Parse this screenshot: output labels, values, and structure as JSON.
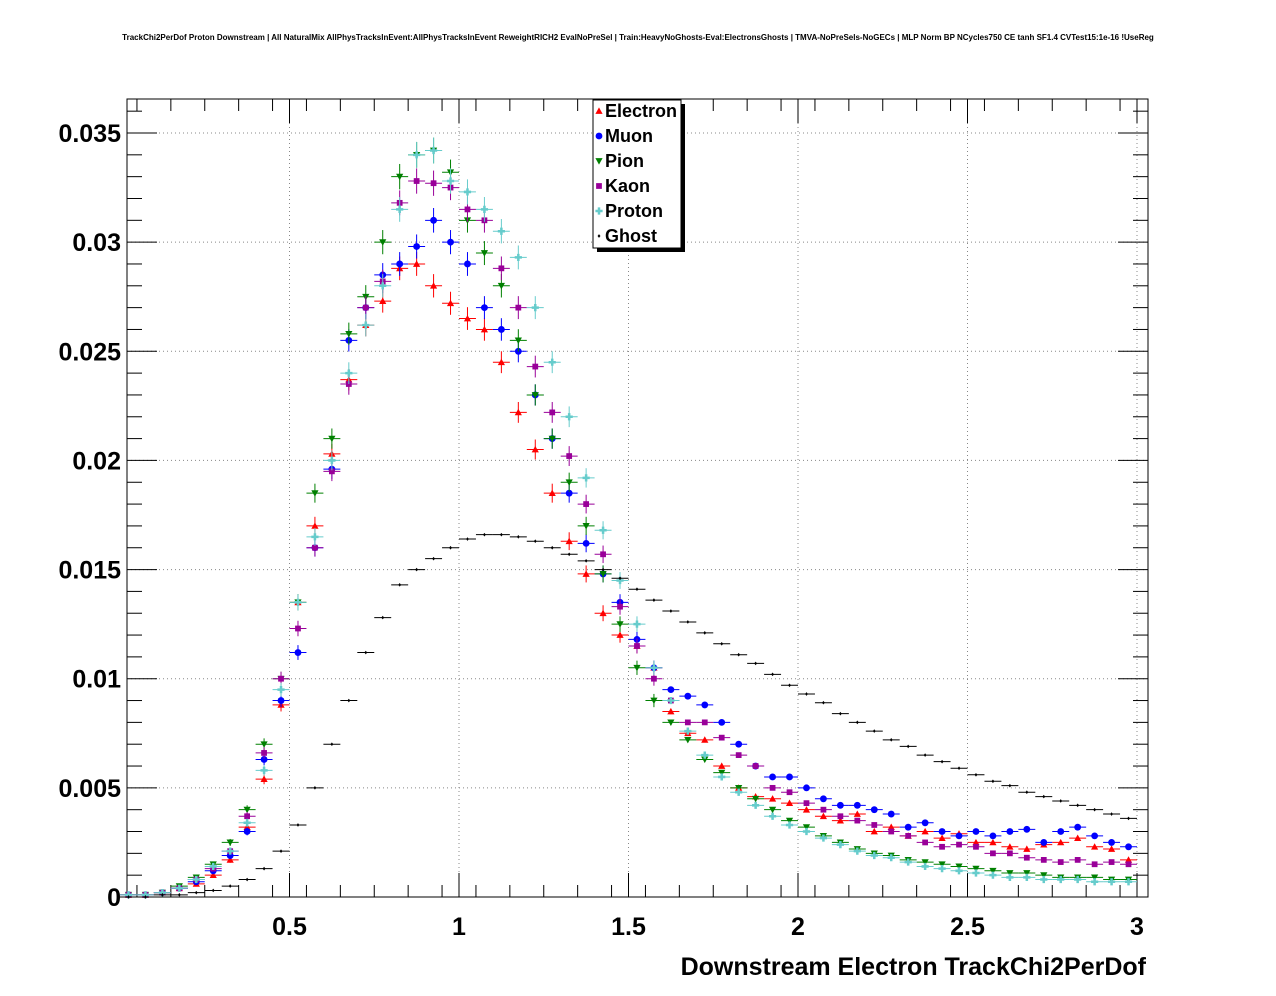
{
  "chart_data": {
    "type": "scatter",
    "title": "TrackChi2PerDof Proton Downstream | All NaturalMix AllPhysTracksInEvent:AllPhysTracksInEvent ReweightRICH2 EvalNoPreSel | Train:HeavyNoGhosts-Eval:ElectronsGhosts | TMVA-NoPreSels-NoGECs | MLP Norm BP NCycles750 CE tanh SF1.4 CVTest15:1e-16 !UseReg",
    "xlabel": "Downstream Electron TrackChi2PerDof",
    "ylabel": "",
    "xlim": [
      0.0,
      3.03
    ],
    "ylim": [
      0.0,
      0.0365
    ],
    "x_ticks": [
      0.5,
      1,
      1.5,
      2,
      2.5,
      3
    ],
    "x_tick_labels": [
      "0.5",
      "1",
      "1.5",
      "2",
      "2.5",
      "3"
    ],
    "y_ticks": [
      0,
      0.005,
      0.01,
      0.015,
      0.02,
      0.025,
      0.03,
      0.035
    ],
    "y_tick_labels": [
      "0",
      "0.005",
      "0.01",
      "0.015",
      "0.02",
      "0.025",
      "0.03",
      "0.035"
    ],
    "grid": true,
    "legend_position": "top-center",
    "x": [
      0.025,
      0.075,
      0.125,
      0.175,
      0.225,
      0.275,
      0.325,
      0.375,
      0.425,
      0.475,
      0.525,
      0.575,
      0.625,
      0.675,
      0.725,
      0.775,
      0.825,
      0.875,
      0.925,
      0.975,
      1.025,
      1.075,
      1.125,
      1.175,
      1.225,
      1.275,
      1.325,
      1.375,
      1.425,
      1.475,
      1.525,
      1.575,
      1.625,
      1.675,
      1.725,
      1.775,
      1.825,
      1.875,
      1.925,
      1.975,
      2.025,
      2.075,
      2.125,
      2.175,
      2.225,
      2.275,
      2.325,
      2.375,
      2.425,
      2.475,
      2.525,
      2.575,
      2.625,
      2.675,
      2.725,
      2.775,
      2.825,
      2.875,
      2.925,
      2.975
    ],
    "series": [
      {
        "name": "Electron",
        "color": "#ff0000",
        "marker": "triangle-up",
        "values": [
          0.0001,
          0.0001,
          0.0002,
          0.0004,
          0.0006,
          0.001,
          0.0017,
          0.0032,
          0.0054,
          0.0088,
          0.0135,
          0.017,
          0.0203,
          0.0237,
          0.0262,
          0.0273,
          0.0288,
          0.029,
          0.028,
          0.0272,
          0.0265,
          0.026,
          0.0245,
          0.0222,
          0.0205,
          0.0185,
          0.0163,
          0.0148,
          0.013,
          0.012,
          0.0115,
          0.0105,
          0.0085,
          0.0075,
          0.0072,
          0.006,
          0.005,
          0.0046,
          0.0045,
          0.0043,
          0.004,
          0.0037,
          0.0035,
          0.0038,
          0.003,
          0.0032,
          0.0028,
          0.003,
          0.0027,
          0.0029,
          0.0025,
          0.0025,
          0.0023,
          0.0022,
          0.0024,
          0.0025,
          0.0027,
          0.0023,
          0.0022,
          0.0017
        ]
      },
      {
        "name": "Muon",
        "color": "#0000ff",
        "marker": "circle",
        "values": [
          0.0001,
          0.0001,
          0.0002,
          0.0004,
          0.0007,
          0.0012,
          0.0019,
          0.003,
          0.0063,
          0.009,
          0.0112,
          0.016,
          0.0196,
          0.0255,
          0.027,
          0.0285,
          0.029,
          0.0298,
          0.031,
          0.03,
          0.029,
          0.027,
          0.026,
          0.025,
          0.023,
          0.021,
          0.0185,
          0.0162,
          0.0148,
          0.0135,
          0.0118,
          0.0105,
          0.0095,
          0.0092,
          0.0088,
          0.008,
          0.007,
          0.006,
          0.0055,
          0.0055,
          0.005,
          0.0045,
          0.0042,
          0.0042,
          0.004,
          0.0038,
          0.0032,
          0.0034,
          0.003,
          0.0028,
          0.003,
          0.0028,
          0.003,
          0.0031,
          0.0025,
          0.003,
          0.0032,
          0.0028,
          0.0025,
          0.0023
        ]
      },
      {
        "name": "Pion",
        "color": "#008000",
        "marker": "triangle-down",
        "values": [
          0.0001,
          0.0001,
          0.0002,
          0.0005,
          0.0009,
          0.0015,
          0.0025,
          0.004,
          0.007,
          0.01,
          0.0135,
          0.0185,
          0.021,
          0.0258,
          0.0275,
          0.03,
          0.033,
          0.034,
          0.0342,
          0.0332,
          0.031,
          0.0295,
          0.028,
          0.0255,
          0.023,
          0.021,
          0.019,
          0.017,
          0.0148,
          0.0125,
          0.0105,
          0.009,
          0.008,
          0.0072,
          0.0063,
          0.0057,
          0.005,
          0.0045,
          0.004,
          0.0035,
          0.0032,
          0.0028,
          0.0025,
          0.0022,
          0.002,
          0.0019,
          0.0017,
          0.0016,
          0.0015,
          0.0014,
          0.0013,
          0.0012,
          0.0011,
          0.0011,
          0.001,
          0.0009,
          0.0009,
          0.0009,
          0.0008,
          0.0008
        ]
      },
      {
        "name": "Kaon",
        "color": "#990099",
        "marker": "square",
        "values": [
          0.0001,
          0.0001,
          0.0002,
          0.0004,
          0.0008,
          0.0013,
          0.0021,
          0.0037,
          0.0066,
          0.01,
          0.0123,
          0.016,
          0.0195,
          0.0235,
          0.027,
          0.0282,
          0.0318,
          0.0328,
          0.0327,
          0.0325,
          0.0315,
          0.031,
          0.0288,
          0.027,
          0.0243,
          0.0222,
          0.0202,
          0.018,
          0.0157,
          0.0133,
          0.0115,
          0.01,
          0.009,
          0.008,
          0.008,
          0.0073,
          0.0065,
          0.006,
          0.005,
          0.0048,
          0.0043,
          0.004,
          0.0037,
          0.0035,
          0.0033,
          0.003,
          0.0028,
          0.0025,
          0.0023,
          0.0024,
          0.0023,
          0.002,
          0.002,
          0.0018,
          0.0017,
          0.0016,
          0.0017,
          0.0015,
          0.0016,
          0.0015
        ]
      },
      {
        "name": "Proton",
        "color": "#66cccc",
        "marker": "cross",
        "values": [
          0.0001,
          0.0001,
          0.0002,
          0.0004,
          0.0008,
          0.0014,
          0.0021,
          0.0034,
          0.0058,
          0.0095,
          0.0135,
          0.0165,
          0.02,
          0.024,
          0.0262,
          0.028,
          0.0315,
          0.034,
          0.0342,
          0.0328,
          0.0323,
          0.0315,
          0.0305,
          0.0293,
          0.027,
          0.0245,
          0.022,
          0.0192,
          0.0168,
          0.0145,
          0.0125,
          0.0105,
          0.009,
          0.0076,
          0.0065,
          0.0055,
          0.0048,
          0.0042,
          0.0037,
          0.0033,
          0.003,
          0.0027,
          0.0024,
          0.0021,
          0.0019,
          0.0018,
          0.0016,
          0.0014,
          0.0013,
          0.0012,
          0.0011,
          0.001,
          0.0009,
          0.0009,
          0.0008,
          0.0008,
          0.0008,
          0.0007,
          0.0007,
          0.0007
        ]
      },
      {
        "name": "Ghost",
        "color": "#000000",
        "marker": "diamond",
        "values": [
          0.0,
          0.0,
          0.0001,
          0.0001,
          0.0002,
          0.0003,
          0.0005,
          0.0008,
          0.0013,
          0.0021,
          0.0033,
          0.005,
          0.007,
          0.009,
          0.0112,
          0.0128,
          0.0143,
          0.015,
          0.0155,
          0.016,
          0.0164,
          0.0166,
          0.0166,
          0.0165,
          0.0163,
          0.016,
          0.0157,
          0.0154,
          0.015,
          0.0146,
          0.0141,
          0.0136,
          0.0131,
          0.0126,
          0.0121,
          0.0116,
          0.0111,
          0.0107,
          0.0102,
          0.0097,
          0.0093,
          0.0089,
          0.0084,
          0.008,
          0.0076,
          0.0072,
          0.0069,
          0.0065,
          0.0062,
          0.0059,
          0.0056,
          0.0053,
          0.0051,
          0.0048,
          0.0046,
          0.0044,
          0.0042,
          0.004,
          0.0038,
          0.0036
        ]
      }
    ]
  }
}
